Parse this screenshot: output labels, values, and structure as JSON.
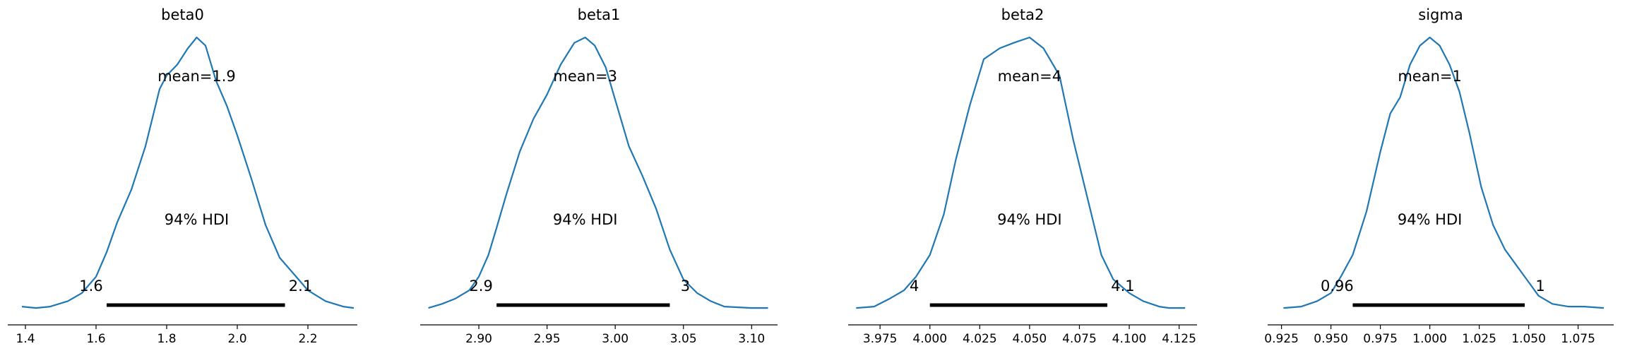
{
  "chart_data": [
    {
      "type": "line",
      "title": "beta0",
      "mean_label": "mean=1.9",
      "hdi_label": "94% HDI",
      "hdi": {
        "low": 1.63,
        "high": 2.135,
        "low_label": "1.6",
        "high_label": "2.1"
      },
      "xlim": [
        1.35,
        2.34
      ],
      "xticks": [
        1.4,
        1.6,
        1.8,
        2.0,
        2.2
      ],
      "xtick_labels": [
        "1.4",
        "1.6",
        "1.8",
        "2.0",
        "2.2"
      ],
      "density": {
        "x": [
          1.39,
          1.43,
          1.47,
          1.52,
          1.56,
          1.6,
          1.63,
          1.66,
          1.7,
          1.74,
          1.78,
          1.8,
          1.83,
          1.86,
          1.885,
          1.91,
          1.94,
          1.97,
          2.0,
          2.04,
          2.08,
          2.12,
          2.16,
          2.2,
          2.25,
          2.3,
          2.33
        ],
        "y": [
          0.01,
          0.005,
          0.01,
          0.03,
          0.06,
          0.12,
          0.21,
          0.32,
          0.44,
          0.6,
          0.81,
          0.86,
          0.9,
          0.96,
          1.0,
          0.97,
          0.84,
          0.75,
          0.64,
          0.48,
          0.31,
          0.19,
          0.13,
          0.07,
          0.03,
          0.01,
          0.005
        ]
      }
    },
    {
      "type": "line",
      "title": "beta1",
      "mean_label": "mean=3",
      "hdi_label": "94% HDI",
      "hdi": {
        "low": 2.913,
        "high": 3.04,
        "low_label": "2.9",
        "high_label": "3"
      },
      "xlim": [
        2.857,
        3.119
      ],
      "xticks": [
        2.85,
        2.9,
        2.95,
        3.0,
        3.05,
        3.1
      ],
      "xtick_labels": [
        "2.85",
        "2.90",
        "2.95",
        "3.00",
        "3.05",
        "3.10"
      ],
      "density": {
        "x": [
          2.863,
          2.873,
          2.883,
          2.893,
          2.9,
          2.907,
          2.913,
          2.92,
          2.93,
          2.94,
          2.95,
          2.96,
          2.97,
          2.978,
          2.985,
          2.993,
          3.0,
          3.01,
          3.02,
          3.03,
          3.04,
          3.05,
          3.06,
          3.07,
          3.08,
          3.1,
          3.112
        ],
        "y": [
          0.005,
          0.02,
          0.04,
          0.07,
          0.12,
          0.2,
          0.3,
          0.42,
          0.58,
          0.7,
          0.79,
          0.9,
          0.98,
          1.0,
          0.97,
          0.89,
          0.77,
          0.6,
          0.49,
          0.37,
          0.22,
          0.11,
          0.06,
          0.03,
          0.01,
          0.005,
          0.005
        ]
      }
    },
    {
      "type": "line",
      "title": "beta2",
      "mean_label": "mean=4",
      "hdi_label": "94% HDI",
      "hdi": {
        "low": 4.0,
        "high": 4.089,
        "low_label": "4",
        "high_label": "4.1"
      },
      "xlim": [
        3.959,
        4.134
      ],
      "xticks": [
        3.975,
        4.0,
        4.025,
        4.05,
        4.075,
        4.1,
        4.125
      ],
      "xtick_labels": [
        "3.975",
        "4.000",
        "4.025",
        "4.050",
        "4.075",
        "4.100",
        "4.125"
      ],
      "density": {
        "x": [
          3.963,
          3.972,
          3.98,
          3.987,
          3.993,
          4.0,
          4.007,
          4.013,
          4.02,
          4.027,
          4.035,
          4.042,
          4.05,
          4.057,
          4.065,
          4.072,
          4.08,
          4.086,
          4.092,
          4.1,
          4.107,
          4.115,
          4.12,
          4.128
        ],
        "y": [
          0.005,
          0.01,
          0.04,
          0.07,
          0.12,
          0.2,
          0.35,
          0.55,
          0.75,
          0.92,
          0.96,
          0.98,
          1.0,
          0.96,
          0.86,
          0.62,
          0.38,
          0.2,
          0.11,
          0.06,
          0.03,
          0.01,
          0.005,
          0.005
        ]
      }
    },
    {
      "type": "line",
      "title": "sigma",
      "mean_label": "mean=1",
      "hdi_label": "94% HDI",
      "hdi": {
        "low": 0.961,
        "high": 1.048,
        "low_label": "0.96",
        "high_label": "1"
      },
      "xlim": [
        0.918,
        1.093
      ],
      "xticks": [
        0.925,
        0.95,
        0.975,
        1.0,
        1.025,
        1.05,
        1.075
      ],
      "xtick_labels": [
        "0.925",
        "0.950",
        "0.975",
        "1.000",
        "1.025",
        "1.050",
        "1.075"
      ],
      "density": {
        "x": [
          0.926,
          0.935,
          0.943,
          0.95,
          0.955,
          0.961,
          0.968,
          0.975,
          0.98,
          0.985,
          0.99,
          0.995,
          1.0,
          1.005,
          1.01,
          1.015,
          1.02,
          1.026,
          1.032,
          1.038,
          1.045,
          1.05,
          1.055,
          1.062,
          1.07,
          1.078,
          1.088
        ],
        "y": [
          0.005,
          0.01,
          0.03,
          0.06,
          0.12,
          0.2,
          0.36,
          0.58,
          0.72,
          0.78,
          0.9,
          0.97,
          1.0,
          0.97,
          0.9,
          0.8,
          0.65,
          0.45,
          0.31,
          0.22,
          0.15,
          0.1,
          0.05,
          0.02,
          0.01,
          0.01,
          0.005
        ]
      }
    }
  ]
}
